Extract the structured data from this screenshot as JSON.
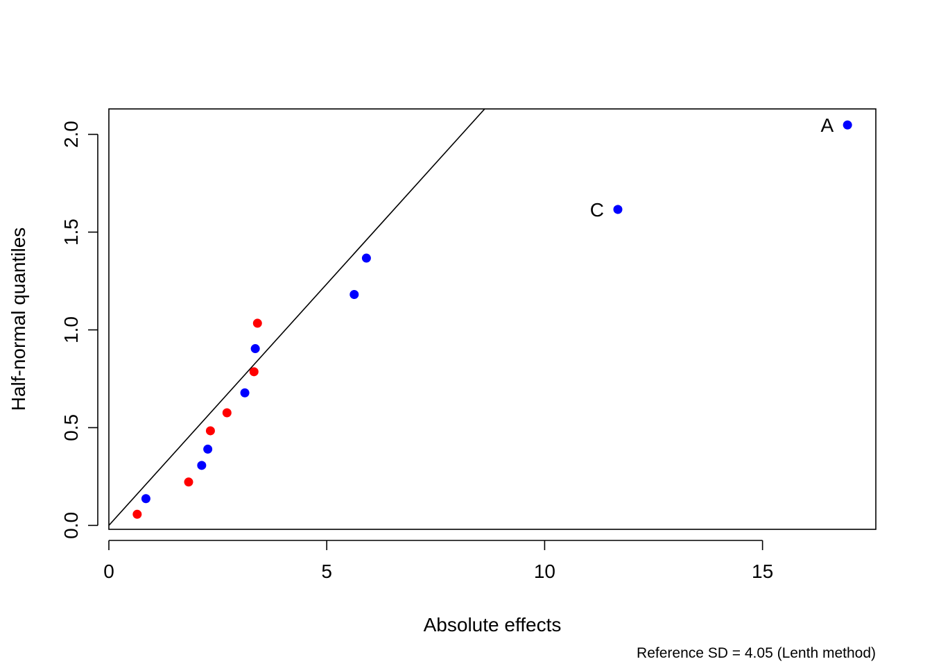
{
  "chart_data": {
    "type": "scatter",
    "title": "",
    "xlabel": "Absolute effects",
    "ylabel": "Half-normal quantiles",
    "footnote": "Reference SD = 4.05 (Lenth method)",
    "xlim": [
      0,
      17.6
    ],
    "ylim": [
      -0.02,
      2.13
    ],
    "x_ticks": [
      0,
      5,
      10,
      15
    ],
    "y_ticks": [
      0.0,
      0.5,
      1.0,
      1.5,
      2.0
    ],
    "x_tick_labels": [
      "0",
      "5",
      "10",
      "15"
    ],
    "y_tick_labels": [
      "0.0",
      "0.5",
      "1.0",
      "1.5",
      "2.0"
    ],
    "grid": false,
    "reference_line": {
      "intercept": 0,
      "slope": 0.247
    },
    "colors": {
      "blue": "#0000ff",
      "red": "#ff0000",
      "axis": "#000000"
    },
    "series": [
      {
        "color": "blue",
        "points": [
          {
            "x": 0.85,
            "y": 0.137
          },
          {
            "x": 2.13,
            "y": 0.307
          },
          {
            "x": 2.27,
            "y": 0.39
          },
          {
            "x": 3.12,
            "y": 0.678
          },
          {
            "x": 3.36,
            "y": 0.904
          },
          {
            "x": 5.63,
            "y": 1.181
          },
          {
            "x": 5.91,
            "y": 1.367
          },
          {
            "x": 11.68,
            "y": 1.616
          },
          {
            "x": 16.95,
            "y": 2.048
          }
        ]
      },
      {
        "color": "red",
        "points": [
          {
            "x": 0.65,
            "y": 0.057
          },
          {
            "x": 1.83,
            "y": 0.222
          },
          {
            "x": 2.33,
            "y": 0.484
          },
          {
            "x": 2.71,
            "y": 0.576
          },
          {
            "x": 3.33,
            "y": 0.786
          },
          {
            "x": 3.41,
            "y": 1.034
          }
        ]
      }
    ],
    "point_labels": [
      {
        "text": "A",
        "x": 16.95,
        "y": 2.048
      },
      {
        "text": "C",
        "x": 11.68,
        "y": 1.616
      }
    ]
  }
}
